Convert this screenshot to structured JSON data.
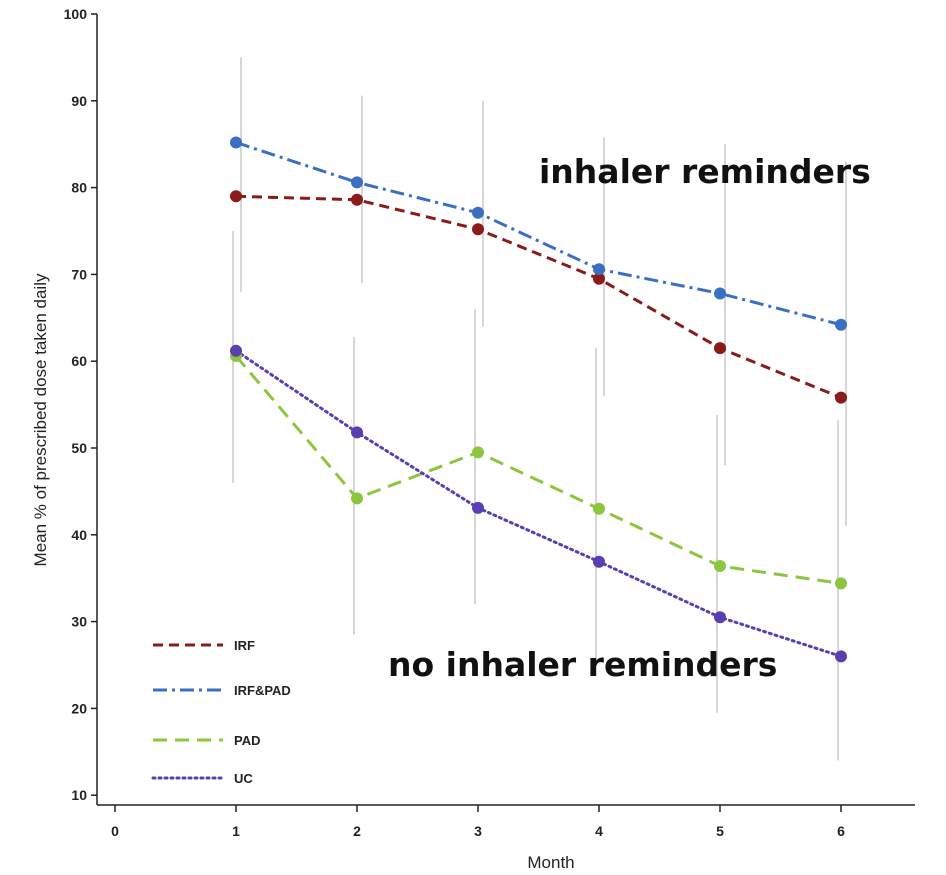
{
  "chart_data": {
    "type": "line",
    "title": "",
    "xlabel": "Month",
    "ylabel": "Mean % of prescribed dose  taken daily",
    "xlim": [
      0,
      6.4
    ],
    "ylim": [
      10,
      100
    ],
    "x_ticks": [
      0,
      1,
      2,
      3,
      4,
      5,
      6
    ],
    "y_ticks": [
      10,
      20,
      30,
      40,
      50,
      60,
      70,
      80,
      90,
      100
    ],
    "grid": false,
    "legend_position": "bottom-left",
    "series": [
      {
        "name": "IRF",
        "color": "#8b1a1a",
        "dash": "dashed",
        "x": [
          1,
          2,
          3,
          4,
          5,
          6
        ],
        "values": [
          79.0,
          78.6,
          75.2,
          69.5,
          61.5,
          55.8
        ]
      },
      {
        "name": "IRF&PAD",
        "color": "#3a6fc4",
        "dash": "dash-dot",
        "x": [
          1,
          2,
          3,
          4,
          5,
          6
        ],
        "values": [
          85.2,
          80.6,
          77.1,
          70.6,
          67.8,
          64.2
        ]
      },
      {
        "name": "PAD",
        "color": "#8cc63f",
        "dash": "long-dash",
        "x": [
          1,
          2,
          3,
          4,
          5,
          6
        ],
        "values": [
          60.6,
          44.2,
          49.5,
          43.0,
          36.4,
          34.4
        ]
      },
      {
        "name": "UC",
        "color": "#5a3fb0",
        "dash": "dotted",
        "x": [
          1,
          2,
          3,
          4,
          5,
          6
        ],
        "values": [
          61.2,
          51.8,
          43.1,
          36.9,
          30.5,
          26.0
        ]
      }
    ],
    "error_bars": [
      {
        "x": 1,
        "low": 68,
        "high": 95
      },
      {
        "x": 2,
        "low": 69,
        "high": 90.6
      },
      {
        "x": 3,
        "low": 64,
        "high": 90
      },
      {
        "x": 4,
        "low": 56,
        "high": 85.8
      },
      {
        "x": 5,
        "low": 48,
        "high": 85
      },
      {
        "x": 6,
        "low": 41,
        "high": 83
      },
      {
        "x": 1,
        "low": 46,
        "high": 75
      },
      {
        "x": 2,
        "low": 28.5,
        "high": 62.8
      },
      {
        "x": 3,
        "low": 32,
        "high": 66
      },
      {
        "x": 4,
        "low": 25,
        "high": 61.5
      },
      {
        "x": 5,
        "low": 19.5,
        "high": 53.8
      },
      {
        "x": 6,
        "low": 14,
        "high": 53.2
      }
    ],
    "annotations": [
      "inhaler reminders",
      "no inhaler reminders"
    ]
  }
}
